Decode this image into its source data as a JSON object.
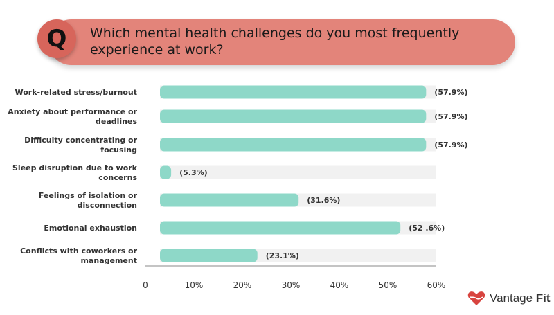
{
  "question": {
    "badge": "Q",
    "text": "Which mental health challenges do you most frequently experience at work?"
  },
  "brand": {
    "name_regular": "Vantage ",
    "name_bold": "Fit",
    "logo_color": "#d8443f"
  },
  "colors": {
    "bar": "#8ed8c8",
    "track": "#f1f1f1",
    "banner": "#e3847a",
    "badge": "#d7655b"
  },
  "chart_data": {
    "type": "bar",
    "orientation": "horizontal",
    "categories": [
      [
        "Work-related stress/burnout"
      ],
      [
        "Anxiety about performance or",
        "deadlines"
      ],
      [
        "Difficulty concentrating or",
        "focusing"
      ],
      [
        "Sleep disruption due to work",
        "concerns"
      ],
      [
        "Feelings of isolation or",
        "disconnection"
      ],
      [
        "Emotional exhaustion"
      ],
      [
        "Conflicts with coworkers or",
        "management"
      ]
    ],
    "values": [
      57.9,
      57.9,
      57.9,
      5.3,
      31.6,
      52.6,
      23.1
    ],
    "data_labels": [
      "(57.9%)",
      "(57.9%)",
      "(57.9%)",
      "(5.3%)",
      "(31.6%)",
      "(52 .6%)",
      "(23.1%)"
    ],
    "xlim": [
      0,
      60
    ],
    "x_ticks": [
      0,
      10,
      20,
      30,
      40,
      50,
      60
    ],
    "x_tick_labels": [
      "0",
      "10%",
      "20%",
      "30%",
      "40%",
      "50%",
      "60%"
    ],
    "grid": false
  }
}
